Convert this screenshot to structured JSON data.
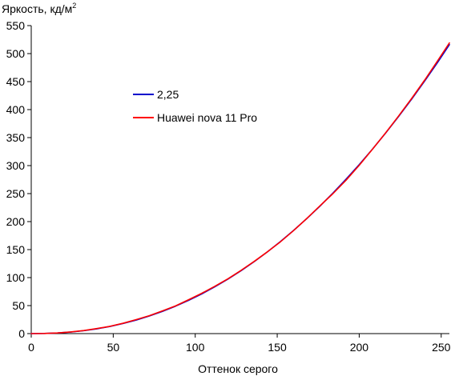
{
  "chart_data": {
    "type": "line",
    "ylabel": "Яркость, кд/м",
    "ylabel_superscript": "2",
    "xlabel": "Оттенок серого",
    "xlim": [
      0,
      255
    ],
    "ylim": [
      0,
      550
    ],
    "x_ticks": [
      0,
      50,
      100,
      150,
      200,
      250
    ],
    "x_tick_labels": [
      "0",
      "50",
      "100",
      "150",
      "200",
      "250"
    ],
    "y_ticks": [
      0,
      50,
      100,
      150,
      200,
      250,
      300,
      350,
      400,
      450,
      500,
      550
    ],
    "y_tick_labels": [
      "0",
      "50",
      "100",
      "150",
      "200",
      "250",
      "300",
      "350",
      "400",
      "450",
      "500",
      "550"
    ],
    "grid": false,
    "legend_position": "upper-left-inner",
    "series": [
      {
        "name": "2,25",
        "color": "#0000cc",
        "x": [
          0,
          8,
          16,
          24,
          32,
          40,
          48,
          56,
          64,
          72,
          80,
          88,
          96,
          104,
          112,
          120,
          128,
          136,
          144,
          152,
          160,
          168,
          176,
          184,
          192,
          200,
          208,
          216,
          224,
          232,
          240,
          248,
          255
        ],
        "y": [
          0,
          0.2,
          1.1,
          2.7,
          5.2,
          8.5,
          12.8,
          18.0,
          24.2,
          31.4,
          39.7,
          49.0,
          59.4,
          70.9,
          83.6,
          97.4,
          112.4,
          128.6,
          145.9,
          164.5,
          184.3,
          205.3,
          227.5,
          251.0,
          275.8,
          301.8,
          329.1,
          357.7,
          387.6,
          418.8,
          451.3,
          485.2,
          516.0
        ]
      },
      {
        "name": "Huawei nova 11 Pro",
        "color": "#ff0000",
        "x": [
          0,
          8,
          16,
          24,
          32,
          40,
          48,
          56,
          64,
          72,
          80,
          88,
          96,
          104,
          112,
          120,
          128,
          136,
          144,
          152,
          160,
          168,
          176,
          184,
          192,
          200,
          208,
          216,
          224,
          232,
          240,
          248,
          255
        ],
        "y": [
          0,
          0.3,
          1.2,
          3.0,
          5.5,
          9.0,
          13.0,
          18.5,
          25.0,
          32.0,
          40.5,
          49.5,
          60.5,
          72.0,
          84.5,
          98.0,
          113.0,
          129.0,
          146.0,
          164.0,
          184.0,
          205.5,
          228.0,
          250.0,
          274.0,
          300.5,
          329.0,
          358.0,
          388.5,
          420.0,
          453.0,
          488.0,
          519.0
        ]
      }
    ]
  }
}
